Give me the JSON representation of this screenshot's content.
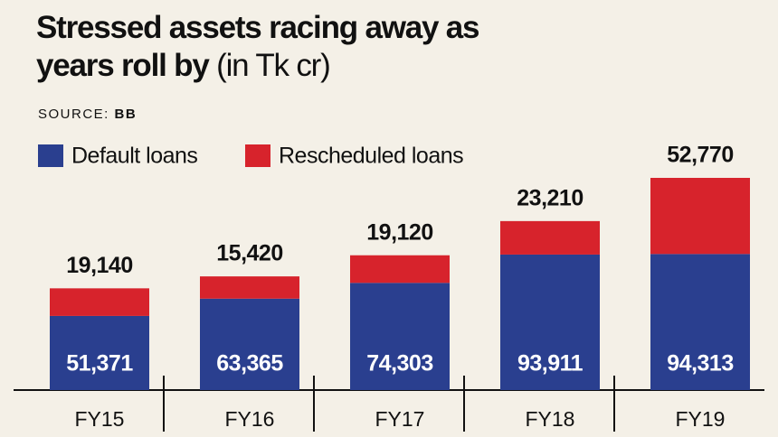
{
  "chart_data": {
    "type": "stacked-bar",
    "title": "Stressed assets racing away as years roll by",
    "title_unit": "(in Tk cr)",
    "source_label": "SOURCE:",
    "source": "BB",
    "categories": [
      "FY15",
      "FY16",
      "FY17",
      "FY18",
      "FY19"
    ],
    "series": [
      {
        "name": "Default loans",
        "color": "#2a3f8f",
        "values": [
          51371,
          63365,
          74303,
          93911,
          94313
        ],
        "value_labels": [
          "51,371",
          "63,365",
          "74,303",
          "93,911",
          "94,313"
        ]
      },
      {
        "name": "Rescheduled loans",
        "color": "#d7232c",
        "values": [
          19140,
          15420,
          19120,
          23210,
          52770
        ],
        "value_labels": [
          "19,140",
          "15,420",
          "19,120",
          "23,210",
          "52,770"
        ]
      }
    ]
  }
}
